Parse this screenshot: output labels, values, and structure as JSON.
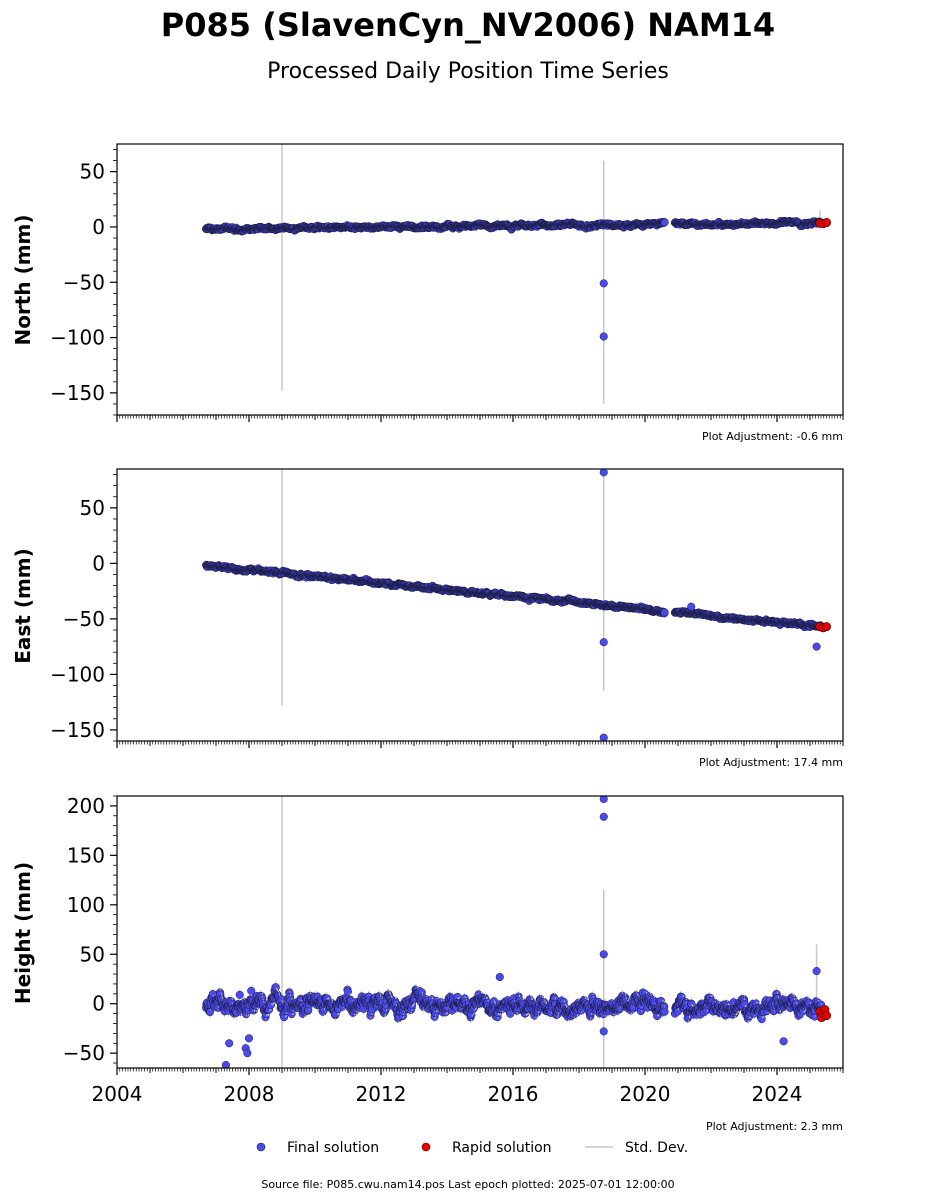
{
  "figure": {
    "title": "P085 (SlavenCyn_NV2006) NAM14",
    "subtitle": "Processed Daily Position Time Series",
    "source": "Source file: P085.cwu.nam14.pos  Last epoch plotted: 2025-07-01 12:00:00"
  },
  "legend": {
    "final": "Final solution",
    "rapid": "Rapid solution",
    "std": "Std. Dev."
  },
  "colors": {
    "final": "#4b4bed",
    "rapid": "#e60000",
    "std": "#c8c8c8",
    "edge": "#1a1a3a"
  },
  "chart_data": [
    {
      "type": "scatter",
      "ylabel": "North (mm)",
      "adjustment": "Plot Adjustment: -0.6 mm",
      "xlim": [
        2004.0,
        2026.0
      ],
      "ylim": [
        -170,
        75
      ],
      "yticks": [
        50,
        0,
        -50,
        -100,
        -150
      ],
      "yticklabels": [
        "50",
        "0",
        "−50",
        "−100",
        "−150"
      ],
      "trend": {
        "start": [
          2006.7,
          -1.5
        ],
        "end": [
          2025.5,
          4.0
        ],
        "noise": 1.5,
        "gap": [
          2020.6,
          2020.9
        ]
      },
      "outliers": [
        [
          2018.75,
          -51
        ],
        [
          2018.75,
          -99
        ]
      ],
      "rapid": [
        [
          2025.3,
          3.5
        ],
        [
          2025.4,
          3.0
        ],
        [
          2025.5,
          4.0
        ]
      ],
      "std_lines": [
        [
          2009.0,
          -148,
          75
        ],
        [
          2018.75,
          -160,
          60
        ],
        [
          2025.3,
          -2,
          15
        ]
      ]
    },
    {
      "type": "scatter",
      "ylabel": "East (mm)",
      "adjustment": "Plot Adjustment: 17.4 mm",
      "xlim": [
        2004.0,
        2026.0
      ],
      "ylim": [
        -160,
        85
      ],
      "yticks": [
        50,
        0,
        -50,
        -100,
        -150
      ],
      "yticklabels": [
        "50",
        "0",
        "−50",
        "−100",
        "−150"
      ],
      "trend": {
        "start": [
          2006.7,
          -2.0
        ],
        "end": [
          2025.5,
          -57.5
        ],
        "noise": 1.5,
        "gap": [
          2020.6,
          2020.9
        ]
      },
      "outliers": [
        [
          2018.75,
          82
        ],
        [
          2018.75,
          -71
        ],
        [
          2018.75,
          -157
        ],
        [
          2025.2,
          -75
        ],
        [
          2021.4,
          -39
        ]
      ],
      "rapid": [
        [
          2025.3,
          -57
        ],
        [
          2025.4,
          -58
        ],
        [
          2025.5,
          -57
        ]
      ],
      "std_lines": [
        [
          2009.0,
          -128,
          85
        ],
        [
          2018.75,
          -115,
          85
        ]
      ]
    },
    {
      "type": "scatter",
      "ylabel": "Height (mm)",
      "adjustment": "Plot Adjustment: 2.3 mm",
      "xlim": [
        2004.0,
        2026.0
      ],
      "ylim": [
        -65,
        210
      ],
      "yticks": [
        200,
        150,
        100,
        50,
        0,
        -50
      ],
      "yticklabels": [
        "200",
        "150",
        "100",
        "50",
        "0",
        "−50"
      ],
      "xticks": [
        2004,
        2008,
        2012,
        2016,
        2020,
        2024
      ],
      "xticklabels": [
        "2004",
        "2008",
        "2012",
        "2016",
        "2020",
        "2024"
      ],
      "trend": {
        "start": [
          2006.7,
          0
        ],
        "end": [
          2025.5,
          -5
        ],
        "noise": 9,
        "gap": [
          2020.6,
          2020.9
        ]
      },
      "outliers": [
        [
          2018.75,
          207
        ],
        [
          2018.75,
          189
        ],
        [
          2018.75,
          50
        ],
        [
          2018.75,
          -28
        ],
        [
          2025.2,
          33
        ],
        [
          2007.4,
          -40
        ],
        [
          2007.9,
          -45
        ],
        [
          2007.95,
          -50
        ],
        [
          2008.0,
          -35
        ],
        [
          2007.3,
          -62
        ],
        [
          2024.2,
          -38
        ],
        [
          2015.6,
          27
        ]
      ],
      "rapid": [
        [
          2025.3,
          -8
        ],
        [
          2025.35,
          -14
        ],
        [
          2025.4,
          -10
        ],
        [
          2025.45,
          -6
        ],
        [
          2025.5,
          -12
        ]
      ],
      "std_lines": [
        [
          2009.0,
          -65,
          210
        ],
        [
          2018.75,
          -65,
          115
        ],
        [
          2025.2,
          0,
          60
        ]
      ]
    }
  ]
}
